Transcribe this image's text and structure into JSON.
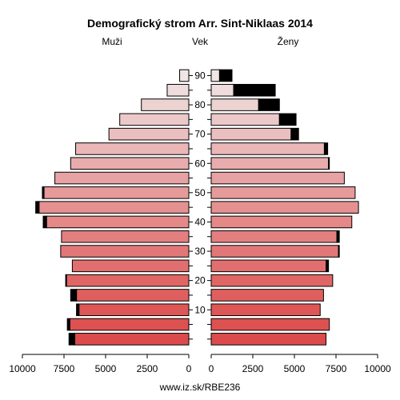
{
  "chart_data": {
    "type": "bar",
    "title": "Demografický strom Arr. Sint-Niklaas 2014",
    "left_label": "Muži",
    "center_label": "Vek",
    "right_label": "Ženy",
    "footer": "www.iz.sk/RBE236",
    "age_ticks": [
      10,
      20,
      30,
      40,
      50,
      60,
      70,
      80,
      90
    ],
    "x_ticks": [
      10000,
      7500,
      5000,
      2500,
      0
    ],
    "x_ticks_right": [
      0,
      2500,
      5000,
      7500,
      10000
    ],
    "xlim": [
      0,
      10000
    ],
    "age_groups": [
      "0-4",
      "5-9",
      "10-14",
      "15-19",
      "20-24",
      "25-29",
      "30-34",
      "35-39",
      "40-44",
      "45-49",
      "50-54",
      "55-59",
      "60-64",
      "65-69",
      "70-74",
      "75-79",
      "80-84",
      "85-89",
      "90-94"
    ],
    "series": [
      {
        "name": "Muži",
        "values": [
          6850,
          7150,
          6600,
          6750,
          7350,
          7000,
          7700,
          7650,
          8550,
          9000,
          8700,
          8050,
          7100,
          6800,
          4800,
          4150,
          2850,
          1300,
          550
        ],
        "excess": [
          350,
          150,
          150,
          350,
          50,
          0,
          0,
          0,
          200,
          200,
          100,
          0,
          0,
          0,
          0,
          0,
          0,
          0,
          0
        ]
      },
      {
        "name": "Ženy",
        "values": [
          6900,
          7100,
          6550,
          6750,
          7300,
          6900,
          7650,
          7550,
          8450,
          8850,
          8650,
          8000,
          7050,
          6800,
          4800,
          4100,
          2850,
          1350,
          500
        ],
        "excess": [
          0,
          0,
          0,
          0,
          0,
          150,
          50,
          150,
          0,
          0,
          0,
          0,
          50,
          200,
          450,
          1000,
          1250,
          2500,
          750
        ]
      }
    ]
  }
}
